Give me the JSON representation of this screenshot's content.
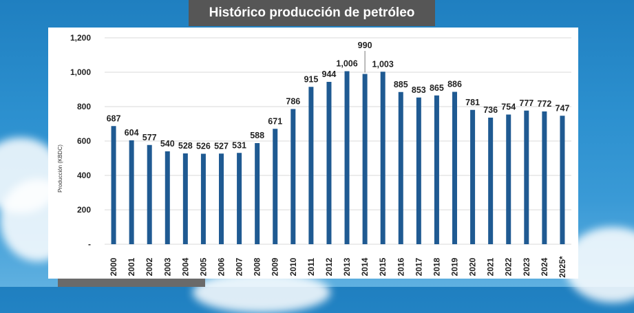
{
  "chart_data": {
    "type": "bar",
    "title": "Histórico producción de petróleo",
    "ylabel": "Producción (KBDC)",
    "xlabel": "",
    "ylim": [
      0,
      1200
    ],
    "yticks": [
      "-",
      "200",
      "400",
      "600",
      "800",
      "1,000",
      "1,200"
    ],
    "categories": [
      "2000",
      "2001",
      "2002",
      "2003",
      "2004",
      "2005",
      "2006",
      "2007",
      "2008",
      "2009",
      "2010",
      "2011",
      "2012",
      "2013",
      "2014",
      "2015",
      "2016",
      "2017",
      "2018",
      "2019",
      "2020",
      "2021",
      "2022",
      "2023",
      "2024",
      "2025*"
    ],
    "values": [
      687,
      604,
      577,
      540,
      528,
      526,
      527,
      531,
      588,
      671,
      786,
      915,
      944,
      1006,
      990,
      1003,
      885,
      853,
      865,
      886,
      781,
      736,
      754,
      777,
      772,
      747
    ],
    "labels": [
      "687",
      "604",
      "577",
      "540",
      "528",
      "526",
      "527",
      "531",
      "588",
      "671",
      "786",
      "915",
      "944",
      "1,006",
      "990",
      "1,003",
      "885",
      "853",
      "865",
      "886",
      "781",
      "736",
      "754",
      "777",
      "772",
      "747"
    ],
    "bar_color": "#1f5a92",
    "grid": true
  }
}
